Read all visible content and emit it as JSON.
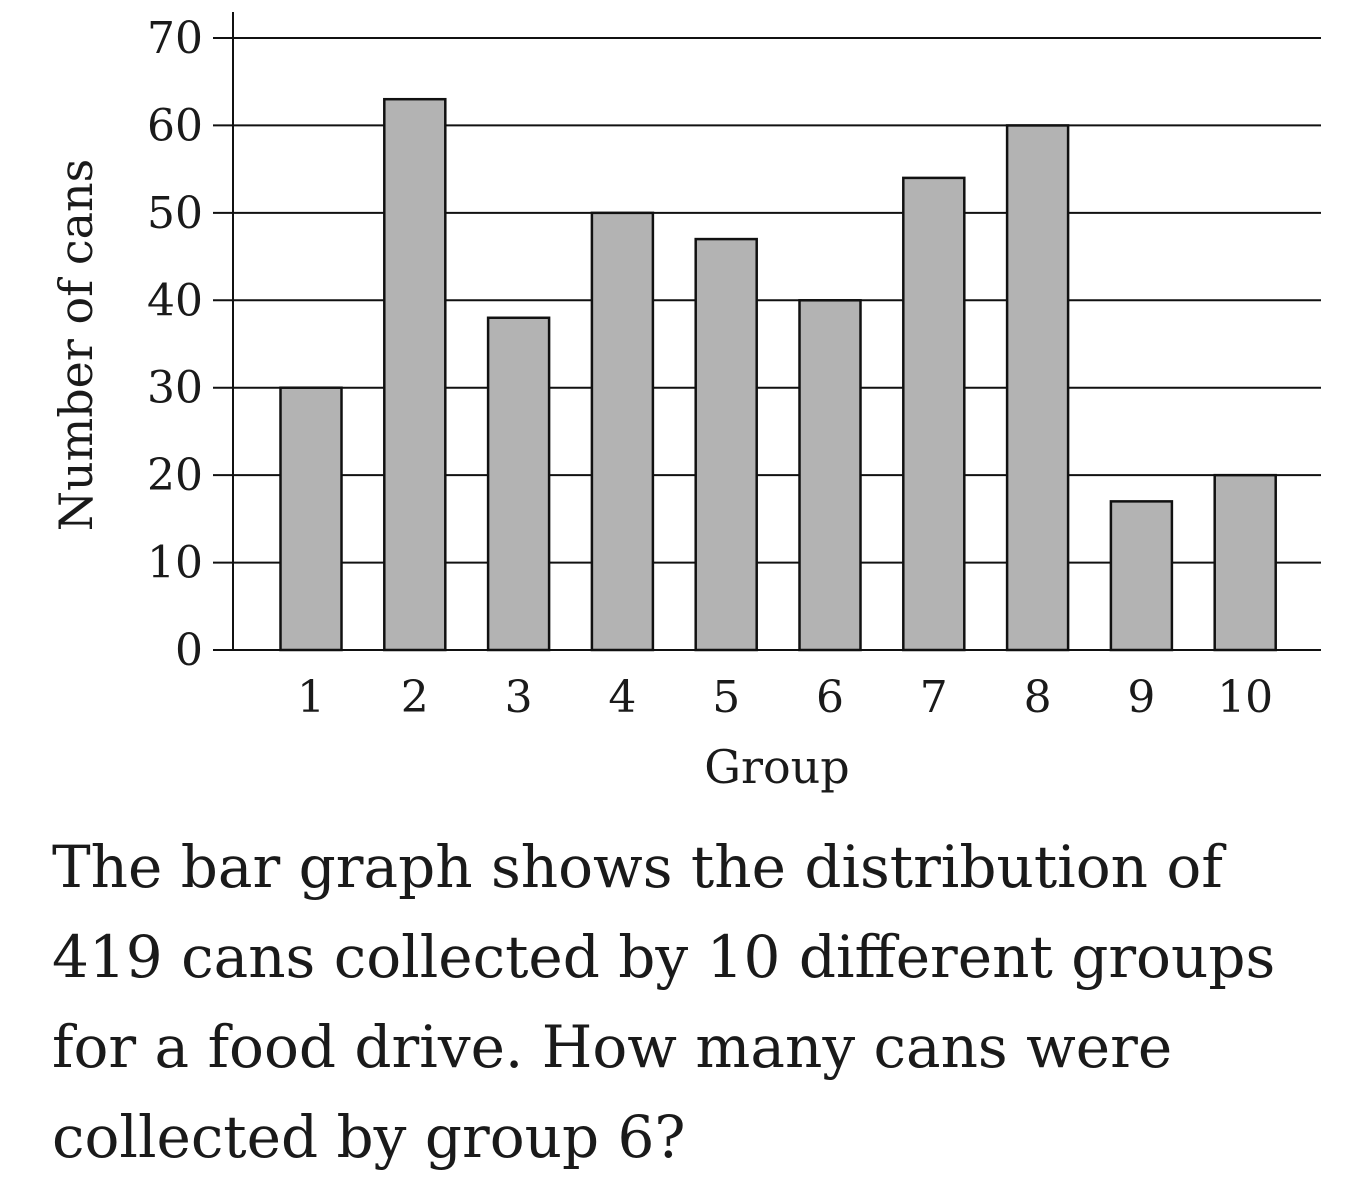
{
  "chart_data": {
    "type": "bar",
    "categories": [
      "1",
      "2",
      "3",
      "4",
      "5",
      "6",
      "7",
      "8",
      "9",
      "10"
    ],
    "values": [
      30,
      63,
      38,
      50,
      47,
      40,
      54,
      60,
      17,
      20
    ],
    "title": "",
    "xlabel": "Group",
    "ylabel": "Number of cans",
    "ylim": [
      0,
      70
    ],
    "yticks": [
      0,
      10,
      20,
      30,
      40,
      50,
      60,
      70
    ],
    "grid": true,
    "bar_color": "#b3b3b3",
    "edge_color": "#111111"
  },
  "question": {
    "text": "The bar graph shows the distribution of 419 cans collected by 10 different groups for a food drive. How many cans were collected by group 6?"
  }
}
